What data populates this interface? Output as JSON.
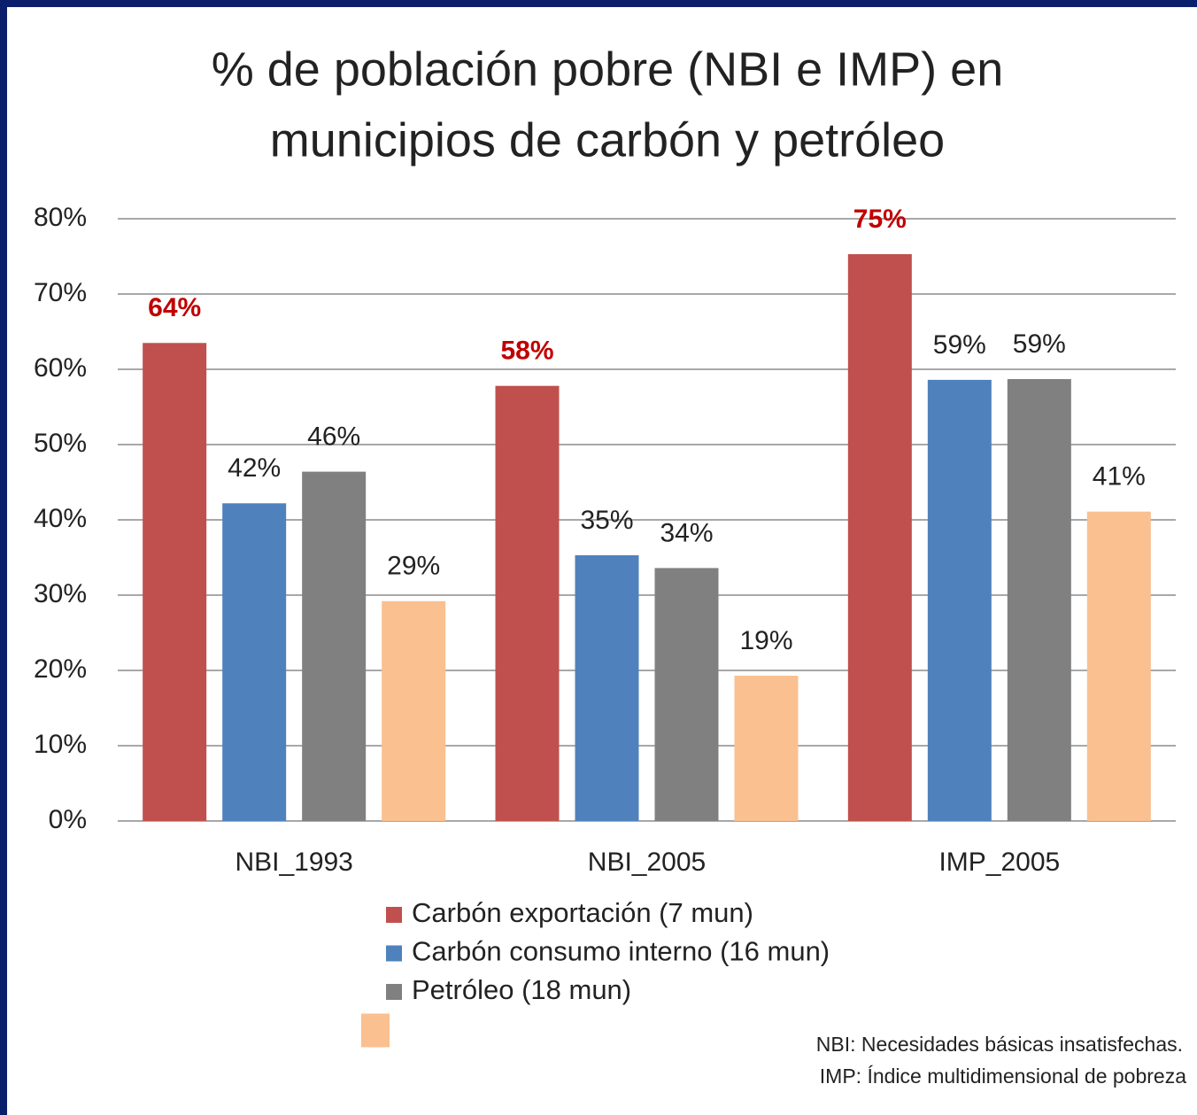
{
  "chart_data": {
    "type": "bar",
    "title": [
      "% de población pobre (NBI e IMP) en",
      "municipios de carbón y petróleo"
    ],
    "categories": [
      "NBI_1993",
      "NBI_2005",
      "IMP_2005"
    ],
    "series": [
      {
        "name": "Carbón exportación (7 mun)",
        "color": "#c0504d",
        "label_color": "#c00000",
        "label_weight": "bold",
        "values": [
          63.5,
          57.8,
          75.3
        ],
        "value_labels": [
          "64%",
          "58%",
          "75%"
        ]
      },
      {
        "name": "Carbón consumo interno (16 mun)",
        "color": "#4f81bd",
        "label_color": "#222222",
        "label_weight": "normal",
        "values": [
          42.2,
          35.3,
          58.6
        ],
        "value_labels": [
          "42%",
          "35%",
          "59%"
        ]
      },
      {
        "name": "Petróleo (18 mun)",
        "color": "#808080",
        "label_color": "#222222",
        "label_weight": "normal",
        "values": [
          46.4,
          33.6,
          58.7
        ],
        "value_labels": [
          "46%",
          "34%",
          "59%"
        ]
      },
      {
        "name": null,
        "color": "#fac090",
        "label_color": "#222222",
        "label_weight": "normal",
        "values": [
          29.2,
          19.3,
          41.1
        ],
        "value_labels": [
          "29%",
          "19%",
          "41%"
        ]
      }
    ],
    "ylim": [
      0,
      80
    ],
    "yticks": [
      {
        "value": 0,
        "label": "0%"
      },
      {
        "value": 10,
        "label": "10%"
      },
      {
        "value": 20,
        "label": "20%"
      },
      {
        "value": 30,
        "label": "30%"
      },
      {
        "value": 40,
        "label": "40%"
      },
      {
        "value": 50,
        "label": "50%"
      },
      {
        "value": 60,
        "label": "60%"
      },
      {
        "value": 70,
        "label": "70%"
      },
      {
        "value": 80,
        "label": "80%"
      }
    ],
    "grid": true,
    "annotations": [
      "NBI: Necesidades básicas insatisfechas.",
      "IMP: Índice multidimensional de pobreza"
    ]
  }
}
